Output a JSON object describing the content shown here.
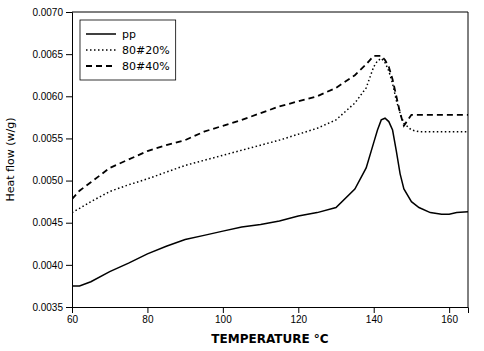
{
  "chart_data": {
    "type": "line",
    "xlabel": "TEMPERATURE °C",
    "ylabel": "Heat flow (w/g)",
    "xlim": [
      60,
      165
    ],
    "ylim": [
      0.0035,
      0.007
    ],
    "xticks": [
      60,
      80,
      100,
      120,
      140,
      160
    ],
    "yticks": [
      0.0035,
      {
        "value": 0.004,
        "label": "0.0040"
      },
      0.0045,
      {
        "value": 0.005,
        "label": "0.0050"
      },
      0.0055,
      {
        "value": 0.006,
        "label": "0.0060"
      },
      0.0065,
      {
        "value": 0.007,
        "label": "0.0070"
      }
    ],
    "grid": false,
    "legend": "upper-left",
    "x": [
      60,
      62,
      65,
      70,
      75,
      80,
      85,
      90,
      95,
      100,
      105,
      110,
      115,
      120,
      125,
      130,
      135,
      138,
      140,
      141,
      142,
      143,
      144,
      145,
      146,
      147,
      148,
      150,
      152,
      155,
      158,
      160,
      162,
      165
    ],
    "series": [
      {
        "name": "pp",
        "color": "#000000",
        "line_style": "solid",
        "values": [
          0.00375,
          0.00375,
          0.0038,
          0.00392,
          0.00402,
          0.00413,
          0.00422,
          0.0043,
          0.00435,
          0.0044,
          0.00445,
          0.00448,
          0.00452,
          0.00458,
          0.00462,
          0.00468,
          0.0049,
          0.00515,
          0.00545,
          0.0056,
          0.00572,
          0.00574,
          0.0057,
          0.0056,
          0.00535,
          0.00508,
          0.0049,
          0.00475,
          0.00468,
          0.00462,
          0.0046,
          0.0046,
          0.00462,
          0.00463
        ]
      },
      {
        "name": "80#20%",
        "color": "#000000",
        "line_style": "dotted",
        "values": [
          0.00462,
          0.00467,
          0.00475,
          0.00487,
          0.00495,
          0.00502,
          0.0051,
          0.00518,
          0.00524,
          0.0053,
          0.00536,
          0.00542,
          0.00548,
          0.00555,
          0.00562,
          0.00572,
          0.00592,
          0.0061,
          0.00635,
          0.00642,
          0.00645,
          0.0064,
          0.0063,
          0.00615,
          0.00595,
          0.0058,
          0.00568,
          0.0056,
          0.00558,
          0.00558,
          0.00558,
          0.00558,
          0.00558,
          0.00558
        ]
      },
      {
        "name": "80#40%",
        "color": "#000000",
        "line_style": "dashed",
        "values": [
          0.00478,
          0.00488,
          0.00498,
          0.00515,
          0.00525,
          0.00535,
          0.00542,
          0.00548,
          0.00558,
          0.00565,
          0.00572,
          0.0058,
          0.00588,
          0.00594,
          0.006,
          0.0061,
          0.00625,
          0.00638,
          0.00648,
          0.00648,
          0.00648,
          0.00643,
          0.00635,
          0.0062,
          0.006,
          0.0058,
          0.00565,
          0.00578,
          0.00578,
          0.00578,
          0.00578,
          0.00578,
          0.00578,
          0.00578
        ]
      }
    ]
  }
}
